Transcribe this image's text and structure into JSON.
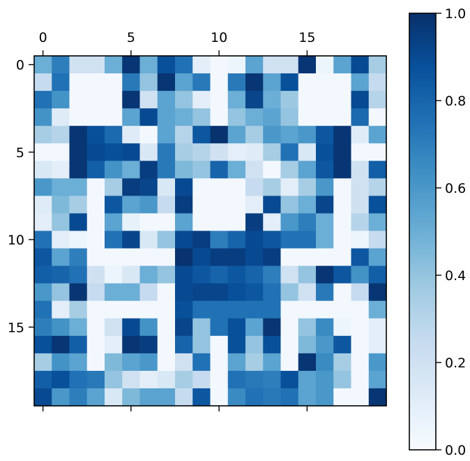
{
  "chart_data": {
    "type": "heatmap",
    "title": "",
    "xlabel": "",
    "ylabel": "",
    "rows": 20,
    "cols": 20,
    "x_ticks": [
      "0",
      "5",
      "10",
      "15"
    ],
    "y_ticks": [
      "0",
      "5",
      "10",
      "15"
    ],
    "x_tick_positions": [
      0,
      5,
      10,
      15
    ],
    "y_tick_positions": [
      0,
      5,
      10,
      15
    ],
    "colormap": "Blues",
    "colormap_stops": [
      "#f7fbff",
      "#deebf7",
      "#c6dbef",
      "#9ecae1",
      "#6baed6",
      "#4292c6",
      "#2171b5",
      "#08519c",
      "#08306b"
    ],
    "vmin": 0.0,
    "vmax": 1.0,
    "colorbar_ticks": [
      "0.0",
      "0.2",
      "0.4",
      "0.6",
      "0.8",
      "1.0"
    ],
    "colorbar_tick_values": [
      0.0,
      0.2,
      0.4,
      0.6,
      0.8,
      1.0
    ],
    "grid": false,
    "values": [
      [
        0.5,
        0.7,
        0.2,
        0.2,
        0.5,
        0.98,
        0.5,
        0.88,
        0.75,
        0.1,
        0.02,
        0.05,
        0.55,
        0.2,
        0.2,
        0.98,
        0.05,
        0.55,
        0.9,
        0.35
      ],
      [
        0.25,
        0.75,
        0.02,
        0.02,
        0.02,
        0.72,
        0.4,
        0.98,
        0.55,
        0.72,
        0.02,
        0.72,
        0.98,
        0.55,
        0.88,
        0.02,
        0.02,
        0.02,
        0.55,
        0.25
      ],
      [
        0.75,
        0.62,
        0.02,
        0.02,
        0.02,
        0.98,
        0.2,
        0.55,
        0.4,
        0.1,
        0.02,
        0.5,
        0.92,
        0.5,
        0.38,
        0.02,
        0.02,
        0.02,
        0.9,
        0.3
      ],
      [
        0.62,
        0.12,
        0.02,
        0.02,
        0.02,
        0.55,
        0.9,
        0.55,
        0.5,
        0.4,
        0.02,
        0.4,
        0.5,
        0.55,
        0.4,
        0.02,
        0.02,
        0.02,
        0.78,
        0.02
      ],
      [
        0.35,
        0.3,
        0.98,
        0.88,
        0.78,
        0.12,
        0.02,
        0.55,
        0.3,
        0.85,
        0.99,
        0.55,
        0.35,
        0.6,
        0.55,
        0.6,
        0.85,
        0.98,
        0.12,
        0.55
      ],
      [
        0.02,
        0.02,
        0.98,
        0.9,
        0.88,
        0.9,
        0.15,
        0.72,
        0.35,
        0.3,
        0.2,
        0.1,
        0.12,
        0.35,
        0.75,
        0.15,
        0.88,
        0.98,
        0.02,
        0.02
      ],
      [
        0.15,
        0.1,
        0.98,
        0.82,
        0.62,
        0.5,
        0.95,
        0.72,
        0.45,
        0.4,
        0.8,
        0.5,
        0.2,
        0.02,
        0.35,
        0.55,
        0.85,
        0.98,
        0.2,
        0.82
      ],
      [
        0.6,
        0.5,
        0.5,
        0.02,
        0.35,
        0.95,
        0.92,
        0.15,
        0.9,
        0.02,
        0.02,
        0.02,
        0.25,
        0.35,
        0.1,
        0.35,
        0.6,
        0.02,
        0.2,
        0.3
      ],
      [
        0.12,
        0.45,
        0.35,
        0.02,
        0.85,
        0.55,
        0.6,
        0.25,
        0.95,
        0.02,
        0.02,
        0.02,
        0.1,
        0.9,
        0.4,
        0.5,
        0.92,
        0.02,
        0.2,
        0.88
      ],
      [
        0.1,
        0.4,
        0.9,
        0.02,
        0.55,
        0.08,
        0.02,
        0.02,
        0.55,
        0.02,
        0.02,
        0.02,
        0.95,
        0.1,
        0.6,
        0.7,
        0.5,
        0.02,
        0.3,
        0.5
      ],
      [
        0.75,
        0.1,
        0.05,
        0.02,
        0.75,
        0.92,
        0.15,
        0.4,
        0.9,
        0.95,
        0.7,
        0.8,
        0.9,
        0.85,
        0.75,
        0.75,
        0.5,
        0.02,
        0.05,
        0.25
      ],
      [
        0.85,
        0.55,
        0.7,
        0.02,
        0.02,
        0.02,
        0.02,
        0.02,
        0.99,
        0.9,
        0.95,
        0.95,
        0.9,
        0.95,
        0.02,
        0.02,
        0.02,
        0.02,
        0.85,
        0.55
      ],
      [
        0.82,
        0.8,
        0.75,
        0.2,
        0.05,
        0.15,
        0.5,
        0.4,
        0.9,
        0.85,
        0.8,
        0.85,
        0.8,
        0.7,
        0.2,
        0.4,
        0.98,
        0.85,
        0.62,
        0.82
      ],
      [
        0.6,
        0.4,
        0.98,
        0.25,
        0.5,
        0.5,
        0.25,
        0.02,
        0.9,
        0.92,
        0.92,
        0.88,
        0.85,
        0.75,
        0.4,
        0.2,
        0.72,
        0.02,
        0.25,
        0.98
      ],
      [
        0.75,
        0.1,
        0.35,
        0.02,
        0.02,
        0.02,
        0.02,
        0.02,
        0.88,
        0.75,
        0.75,
        0.75,
        0.75,
        0.75,
        0.02,
        0.02,
        0.02,
        0.02,
        0.02,
        0.5
      ],
      [
        0.7,
        0.62,
        0.5,
        0.02,
        0.2,
        0.9,
        0.62,
        0.02,
        0.92,
        0.4,
        0.75,
        0.88,
        0.55,
        0.98,
        0.02,
        0.4,
        0.65,
        0.05,
        0.02,
        0.1
      ],
      [
        0.88,
        0.98,
        0.82,
        0.02,
        0.1,
        0.98,
        0.95,
        0.02,
        0.8,
        0.4,
        0.02,
        0.88,
        0.4,
        0.88,
        0.02,
        0.45,
        0.6,
        0.85,
        0.02,
        0.1
      ],
      [
        0.35,
        0.62,
        0.55,
        0.02,
        0.45,
        0.55,
        0.6,
        0.02,
        0.2,
        0.75,
        0.02,
        0.55,
        0.35,
        0.55,
        0.02,
        0.98,
        0.65,
        0.35,
        0.02,
        0.6
      ],
      [
        0.82,
        0.88,
        0.75,
        0.72,
        0.4,
        0.2,
        0.1,
        0.15,
        0.35,
        0.25,
        0.02,
        0.75,
        0.72,
        0.7,
        0.88,
        0.55,
        0.6,
        0.4,
        0.02,
        0.55
      ],
      [
        0.9,
        0.6,
        0.7,
        0.55,
        0.15,
        0.45,
        0.55,
        0.55,
        0.25,
        0.85,
        0.02,
        0.65,
        0.75,
        0.72,
        0.75,
        0.55,
        0.6,
        0.02,
        0.02,
        0.98
      ]
    ]
  }
}
